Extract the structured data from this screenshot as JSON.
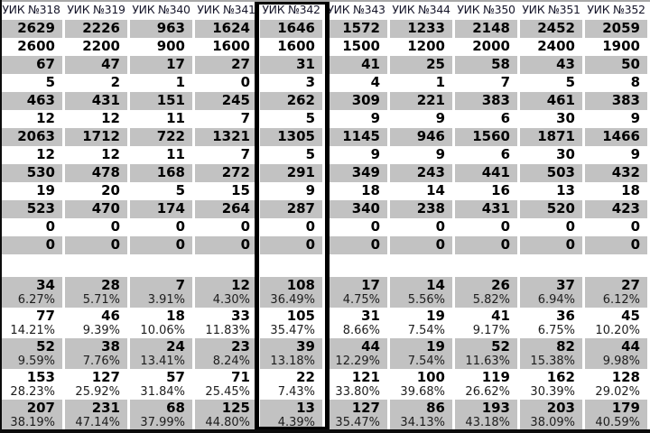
{
  "table": {
    "columns": [
      "УИК №318",
      "УИК №319",
      "УИК №340",
      "УИК №341",
      "УИК №342",
      "УИК №343",
      "УИК №344",
      "УИК №350",
      "УИК №351",
      "УИК №352"
    ],
    "highlighted_column": "УИК №342",
    "highlighted_column_index": 4,
    "single_rows": [
      [
        "2629",
        "2226",
        "963",
        "1624",
        "1646",
        "1572",
        "1233",
        "2148",
        "2452",
        "2059"
      ],
      [
        "2600",
        "2200",
        "900",
        "1600",
        "1600",
        "1500",
        "1200",
        "2000",
        "2400",
        "1900"
      ],
      [
        "67",
        "47",
        "17",
        "27",
        "31",
        "41",
        "25",
        "58",
        "43",
        "50"
      ],
      [
        "5",
        "2",
        "1",
        "0",
        "3",
        "4",
        "1",
        "7",
        "5",
        "8"
      ],
      [
        "463",
        "431",
        "151",
        "245",
        "262",
        "309",
        "221",
        "383",
        "461",
        "383"
      ],
      [
        "12",
        "12",
        "11",
        "7",
        "5",
        "9",
        "9",
        "6",
        "30",
        "9"
      ],
      [
        "2063",
        "1712",
        "722",
        "1321",
        "1305",
        "1145",
        "946",
        "1560",
        "1871",
        "1466"
      ],
      [
        "12",
        "12",
        "11",
        "7",
        "5",
        "9",
        "9",
        "6",
        "30",
        "9"
      ],
      [
        "530",
        "478",
        "168",
        "272",
        "291",
        "349",
        "243",
        "441",
        "503",
        "432"
      ],
      [
        "19",
        "20",
        "5",
        "15",
        "9",
        "18",
        "14",
        "16",
        "13",
        "18"
      ],
      [
        "523",
        "470",
        "174",
        "264",
        "287",
        "340",
        "238",
        "431",
        "520",
        "423"
      ],
      [
        "0",
        "0",
        "0",
        "0",
        "0",
        "0",
        "0",
        "0",
        "0",
        "0"
      ],
      [
        "0",
        "0",
        "0",
        "0",
        "0",
        "0",
        "0",
        "0",
        "0",
        "0"
      ]
    ],
    "percent_rows": [
      {
        "values": [
          "34",
          "28",
          "7",
          "12",
          "108",
          "17",
          "14",
          "26",
          "37",
          "27"
        ],
        "percents": [
          "6.27%",
          "5.71%",
          "3.91%",
          "4.30%",
          "36.49%",
          "4.75%",
          "5.56%",
          "5.82%",
          "6.94%",
          "6.12%"
        ]
      },
      {
        "values": [
          "77",
          "46",
          "18",
          "33",
          "105",
          "31",
          "19",
          "41",
          "36",
          "45"
        ],
        "percents": [
          "14.21%",
          "9.39%",
          "10.06%",
          "11.83%",
          "35.47%",
          "8.66%",
          "7.54%",
          "9.17%",
          "6.75%",
          "10.20%"
        ]
      },
      {
        "values": [
          "52",
          "38",
          "24",
          "23",
          "39",
          "44",
          "19",
          "52",
          "82",
          "44"
        ],
        "percents": [
          "9.59%",
          "7.76%",
          "13.41%",
          "8.24%",
          "13.18%",
          "12.29%",
          "7.54%",
          "11.63%",
          "15.38%",
          "9.98%"
        ]
      },
      {
        "values": [
          "153",
          "127",
          "57",
          "71",
          "22",
          "121",
          "100",
          "119",
          "162",
          "128"
        ],
        "percents": [
          "28.23%",
          "25.92%",
          "31.84%",
          "25.45%",
          "7.43%",
          "33.80%",
          "39.68%",
          "26.62%",
          "30.39%",
          "29.02%"
        ]
      },
      {
        "values": [
          "207",
          "231",
          "68",
          "125",
          "13",
          "127",
          "86",
          "193",
          "203",
          "179"
        ],
        "percents": [
          "38.19%",
          "47.14%",
          "37.99%",
          "44.80%",
          "4.39%",
          "35.47%",
          "34.13%",
          "43.18%",
          "38.09%",
          "40.59%"
        ]
      }
    ],
    "colors": {
      "row_gray": "#c2c2c2",
      "highlight_border": "#000000",
      "background": "#ffffff"
    }
  }
}
